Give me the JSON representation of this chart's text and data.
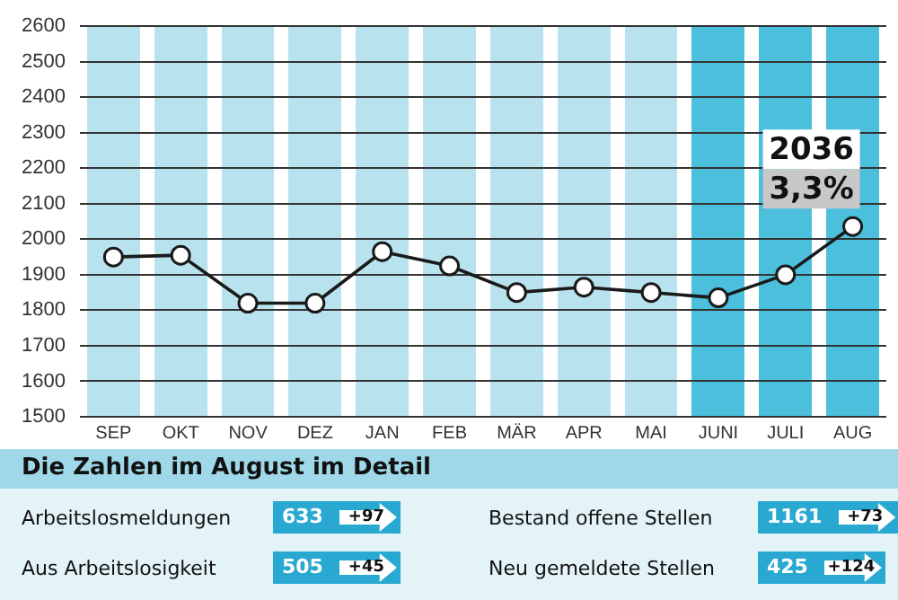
{
  "chart_data": {
    "type": "line",
    "categories": [
      "SEP",
      "OKT",
      "NOV",
      "DEZ",
      "JAN",
      "FEB",
      "MÄR",
      "APR",
      "MAI",
      "JUNI",
      "JULI",
      "AUG"
    ],
    "series": [
      {
        "color": "#1a1a1a",
        "values": [
          1950,
          1955,
          1820,
          1820,
          1965,
          1925,
          1850,
          1865,
          1850,
          1835,
          1900,
          2036
        ]
      }
    ],
    "ylim": [
      1500,
      2600
    ],
    "yticks": [
      1500,
      1600,
      1700,
      1800,
      1900,
      2000,
      2100,
      2200,
      2300,
      2400,
      2500,
      2600
    ],
    "grid": true,
    "marker": "circle",
    "line_style": "solid",
    "legend": false,
    "bands": [
      {
        "axis": "x",
        "from": "SEP",
        "to": "MAI",
        "color": "#b8e3ee"
      },
      {
        "axis": "x",
        "from": "JUNI",
        "to": "AUG",
        "color": "#4cbfdc"
      }
    ],
    "annotations": [
      {
        "text": "2036",
        "x": "AUG",
        "y": 2036
      },
      {
        "text": "3,3%",
        "x": "AUG",
        "y": 2036
      },
      "Die Zahlen im August im Detail",
      "Arbeitslosmeldungen",
      "633",
      "+97",
      "Bestand offene Stellen",
      "1161",
      "+73",
      "Aus Arbeitslosigkeit",
      "505",
      "+45",
      "Neu gemeldete Stellen",
      "425",
      "+124"
    ]
  }
}
